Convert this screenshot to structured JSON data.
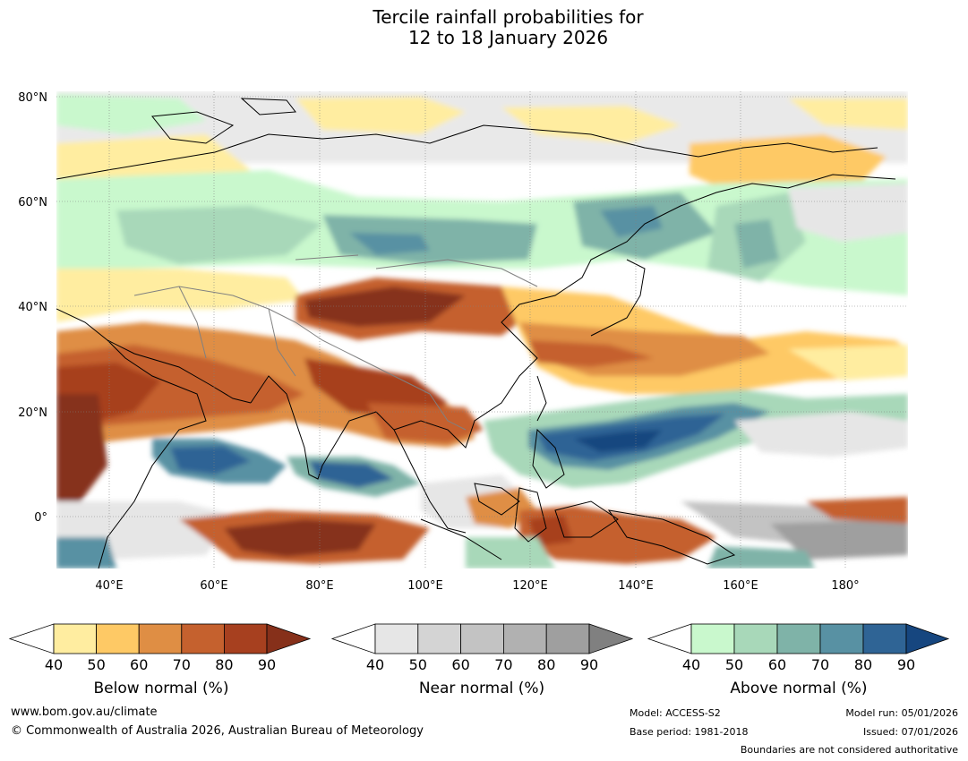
{
  "title": {
    "line1": "Tercile rainfall probabilities for",
    "line2": "12 to 18 January 2026"
  },
  "map": {
    "lat_labels": [
      "80°N",
      "60°N",
      "40°N",
      "20°N",
      "0°"
    ],
    "lon_labels": [
      "40°E",
      "60°E",
      "80°E",
      "100°E",
      "120°E",
      "140°E",
      "160°E",
      "180°"
    ]
  },
  "colorbars": [
    {
      "name": "below",
      "label": "Below normal (%)",
      "ticks": [
        "40",
        "50",
        "60",
        "70",
        "80",
        "90"
      ],
      "colors": [
        "#ffffff",
        "#ffeda0",
        "#fec965",
        "#df8e44",
        "#c5612e",
        "#a7401f",
        "#86301a"
      ]
    },
    {
      "name": "near",
      "label": "Near normal (%)",
      "ticks": [
        "40",
        "50",
        "60",
        "70",
        "80",
        "90"
      ],
      "colors": [
        "#ffffff",
        "#e6e6e6",
        "#d4d4d4",
        "#c3c3c3",
        "#b1b1b1",
        "#9f9f9f",
        "#808080"
      ]
    },
    {
      "name": "above",
      "label": "Above normal (%)",
      "ticks": [
        "40",
        "50",
        "60",
        "70",
        "80",
        "90"
      ],
      "colors": [
        "#ffffff",
        "#c9f8cd",
        "#a8d8b9",
        "#7fb3a8",
        "#5891a3",
        "#2f6495",
        "#16467f"
      ]
    }
  ],
  "footer": {
    "url": "www.bom.gov.au/climate",
    "copyright": "© Commonwealth of Australia 2026, Australian Bureau of Meteorology",
    "model": "Model: ACCESS-S2",
    "base_period": "Base period: 1981-2018",
    "model_run": "Model run: 05/01/2026",
    "issued": "Issued: 07/01/2026",
    "disclaimer": "Boundaries are not considered authoritative"
  }
}
